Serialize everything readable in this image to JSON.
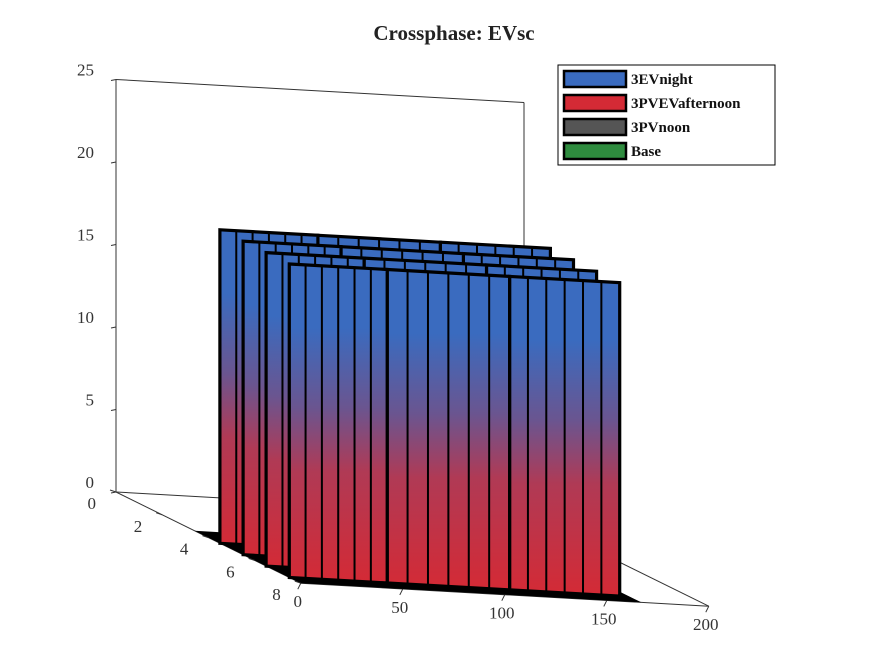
{
  "chart_data": {
    "type": "bar3d",
    "title": "Crossphase: EVsc",
    "xlabel": "",
    "ylabel": "",
    "zlabel": "",
    "x_ticks": [
      "0",
      "50",
      "100",
      "150",
      "200"
    ],
    "y_ticks": [
      "0",
      "2",
      "4",
      "6",
      "8"
    ],
    "z_ticks": [
      "0",
      "5",
      "10",
      "15",
      "20",
      "25"
    ],
    "xlim": [
      0,
      200
    ],
    "ylim": [
      0,
      8
    ],
    "zlim": [
      0,
      25
    ],
    "legend_position": "top-right",
    "colormap": "red-to-blue",
    "series": [
      {
        "name": "3EVnight",
        "color": "#3a6bbf"
      },
      {
        "name": "3PVEVafternoon",
        "color": "#d42a35"
      },
      {
        "name": "3PVnoon",
        "color": "#555555"
      },
      {
        "name": "Base",
        "color": "#2e8b3e"
      }
    ],
    "blocks": [
      {
        "x_start": 0,
        "x_end": 48,
        "sheets": [
          {
            "y": 7,
            "height": 19
          },
          {
            "y": 6,
            "height": 19
          },
          {
            "y": 5,
            "height": 19
          },
          {
            "y": 4,
            "height": 19
          }
        ]
      },
      {
        "x_start": 48,
        "x_end": 108,
        "sheets": [
          {
            "y": 7,
            "height": 19
          },
          {
            "y": 6,
            "height": 19
          },
          {
            "y": 5,
            "height": 19
          },
          {
            "y": 4,
            "height": 19
          }
        ]
      },
      {
        "x_start": 108,
        "x_end": 162,
        "sheets": [
          {
            "y": 7,
            "height": 19
          },
          {
            "y": 6,
            "height": 19
          },
          {
            "y": 5,
            "height": 19
          },
          {
            "y": 4,
            "height": 19
          }
        ]
      }
    ],
    "floor_height": 0
  }
}
